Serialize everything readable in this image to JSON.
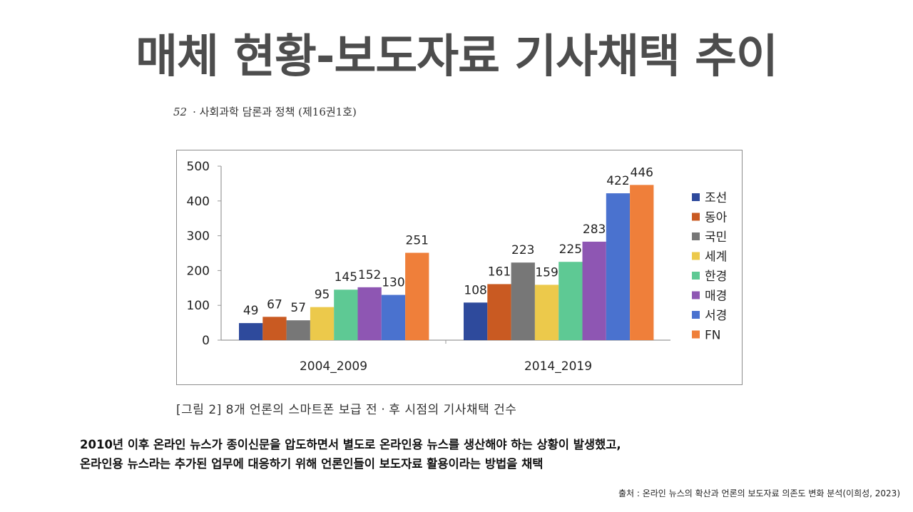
{
  "slide": {
    "title": "매체 현황-보도자료 기사채택 추이",
    "running_head_page": "52",
    "running_head_text": "· 사회과학 담론과 정책 (제16권1호)",
    "figure_caption": "[그림 2] 8개 언론의 스마트폰 보급 전ㆍ후 시점의 기사채택 건수",
    "body_line1": "2010년 이후 온라인 뉴스가 종이신문을 압도하면서 별도로 온라인용 뉴스를 생산해야 하는 상황이 발생했고,",
    "body_line2": "온라인용 뉴스라는 추가된 업무에 대응하기 위해 언론인들이 보도자료 활용이라는 방법을 채택",
    "source": "출처 : 온라인 뉴스의 확산과 언론의 보도자료 의존도 변화 분석(이희성, 2023)"
  },
  "chart_data": {
    "type": "bar",
    "categories": [
      "2004_2009",
      "2014_2019"
    ],
    "series": [
      {
        "name": "조선",
        "color": "#2e4a9c",
        "values": [
          49,
          108
        ]
      },
      {
        "name": "동아",
        "color": "#c95a22",
        "values": [
          67,
          161
        ]
      },
      {
        "name": "국민",
        "color": "#777777",
        "values": [
          57,
          223
        ]
      },
      {
        "name": "세계",
        "color": "#ecc94b",
        "values": [
          95,
          159
        ]
      },
      {
        "name": "한경",
        "color": "#5ec994",
        "values": [
          145,
          225
        ]
      },
      {
        "name": "매경",
        "color": "#8e56b3",
        "values": [
          152,
          283
        ]
      },
      {
        "name": "서경",
        "color": "#4a72cf",
        "values": [
          130,
          422
        ]
      },
      {
        "name": "FN",
        "color": "#ef7f3a",
        "values": [
          251,
          446
        ]
      }
    ],
    "ylim": [
      0,
      500
    ],
    "yticks": [
      0,
      100,
      200,
      300,
      400,
      500
    ],
    "grid": false,
    "legend": "right",
    "data_labels": true
  }
}
